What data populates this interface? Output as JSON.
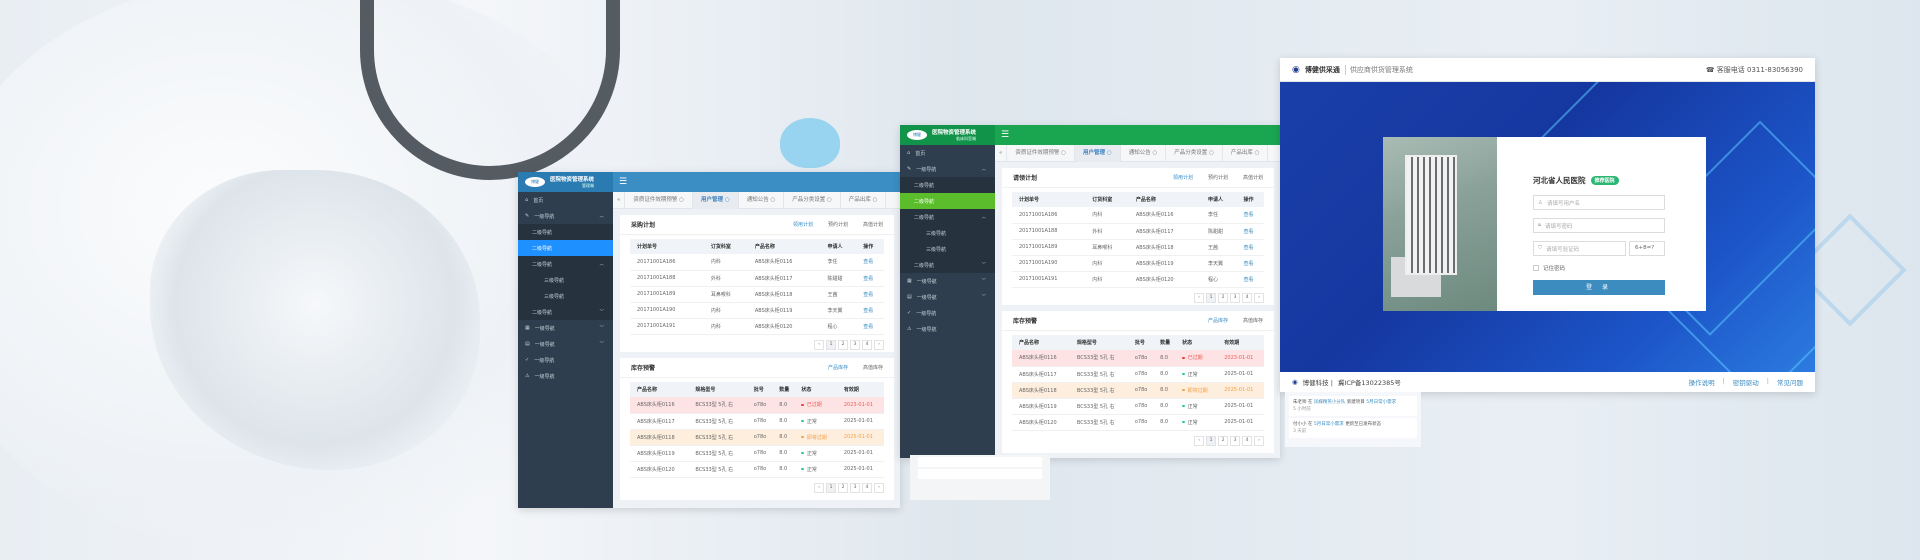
{
  "colors": {
    "blue_header": "#3a8ec4",
    "green_header": "#1aa551",
    "sidebar": "#2f3e4e",
    "blue_active": "#1f90ff",
    "green_active": "#5bbd2b",
    "login_blue": "#1a3fa8"
  },
  "apps": [
    {
      "theme": "blue",
      "logo_text": "博健",
      "title": "医院物资管理系统",
      "subtitle": "管理端",
      "panel1_title": "采购计划",
      "panel1_tabs": [
        "领用计划",
        "预约计划",
        "高值计划"
      ]
    },
    {
      "theme": "green",
      "logo_text": "博健",
      "title": "医院物资管理系统",
      "subtitle": "临床科室端",
      "panel1_title": "请领计划",
      "panel1_tabs": [
        "领用计划",
        "预约计划",
        "高值计划"
      ]
    }
  ],
  "sidebar": [
    {
      "label": "首页",
      "icon": "home-icon",
      "level": 1
    },
    {
      "label": "一级导航",
      "icon": "edit-icon",
      "level": 1,
      "chevron": "up"
    },
    {
      "label": "二级导航",
      "level": 2
    },
    {
      "label": "二级导航",
      "level": 2,
      "active": true
    },
    {
      "label": "二级导航",
      "level": 2,
      "chevron": "up"
    },
    {
      "label": "三级导航",
      "level": 3
    },
    {
      "label": "三级导航",
      "level": 3
    },
    {
      "label": "二级导航",
      "level": 2,
      "chevron": "down"
    },
    {
      "label": "一级导航",
      "icon": "grid-icon",
      "level": 1,
      "chevron": "down"
    },
    {
      "label": "一级导航",
      "icon": "table-icon",
      "level": 1,
      "chevron": "down"
    },
    {
      "label": "一级导航",
      "icon": "check-circle-icon",
      "level": 1
    },
    {
      "label": "一级导航",
      "icon": "warning-icon",
      "level": 1
    }
  ],
  "tabs": [
    "资质证件效期预警",
    "用户管理",
    "通知公告",
    "产品分类设置",
    "产品出库"
  ],
  "active_tab": 1,
  "plan_table": {
    "headers": [
      "计划单号",
      "订货科室",
      "产品名称",
      "申请人",
      "操作"
    ],
    "rows": [
      [
        "20171001A186",
        "内科",
        "ABS床头柜0116",
        "李任",
        "查看"
      ],
      [
        "20171001A188",
        "外科",
        "ABS床头柜0117",
        "陈甜甜",
        "查看"
      ],
      [
        "20171001A189",
        "耳鼻喉科",
        "ABS床头柜0118",
        "王茜",
        "查看"
      ],
      [
        "20171001A190",
        "内科",
        "ABS床头柜0119",
        "李天翼",
        "查看"
      ],
      [
        "20171001A191",
        "内科",
        "ABS床头柜0120",
        "程心",
        "查看"
      ]
    ]
  },
  "stock_panel": {
    "title": "库存预警",
    "tabs": [
      "产品库存",
      "高值库存"
    ]
  },
  "stock_table": {
    "headers": [
      "产品名称",
      "规格型号",
      "批号",
      "数量",
      "状态",
      "有效期"
    ],
    "rows": [
      {
        "cells": [
          "ABS床头柜0116",
          "BCS33型 5孔 右",
          "o78o",
          "8.0",
          "已过期",
          "2023-01-01"
        ],
        "status": "expired"
      },
      {
        "cells": [
          "ABS床头柜0117",
          "BCS33型 5孔 右",
          "o78o",
          "8.0",
          "正常",
          "2025-01-01"
        ],
        "status": "normal"
      },
      {
        "cells": [
          "ABS床头柜0118",
          "BCS33型 5孔 右",
          "o78o",
          "8.0",
          "即将过期",
          "2025-01-01"
        ],
        "status": "expiring"
      },
      {
        "cells": [
          "ABS床头柜0119",
          "BCS33型 5孔 右",
          "o78o",
          "8.0",
          "正常",
          "2025-01-01"
        ],
        "status": "normal"
      },
      {
        "cells": [
          "ABS床头柜0120",
          "BCS33型 5孔 右",
          "o78o",
          "8.0",
          "正常",
          "2025-01-01"
        ],
        "status": "normal"
      }
    ]
  },
  "pager": [
    "‹",
    "1",
    "2",
    "3",
    "4",
    "›"
  ],
  "login": {
    "brand": "博健供采通",
    "system": "供应商供货管理系统",
    "phone": "客服电话 0311-83056390",
    "hospital": "河北省人民医院",
    "badge": "推荐医院",
    "username_placeholder": "请填写用户名",
    "password_placeholder": "请填写密码",
    "captcha_placeholder": "请填写验证码",
    "captcha": "6+8=?",
    "remember": "记住密码",
    "submit": "登 录",
    "footer_company": "博健科技 |",
    "footer_icp": "冀ICP备13022385号",
    "footer_links": [
      "操作说明",
      "密钥驱动",
      "常见问题"
    ]
  },
  "feed": [
    {
      "user": "朱老师",
      "pre": "在",
      "target": "凤媒精英小分队",
      "action": "新建项目",
      "obj": "5月日常小需求",
      "time": "5 小时前"
    },
    {
      "user": "付小小",
      "pre": "在",
      "target": "5月日常小需求",
      "action": "更新至已发布状态",
      "obj": "",
      "time": "3 天前"
    }
  ]
}
